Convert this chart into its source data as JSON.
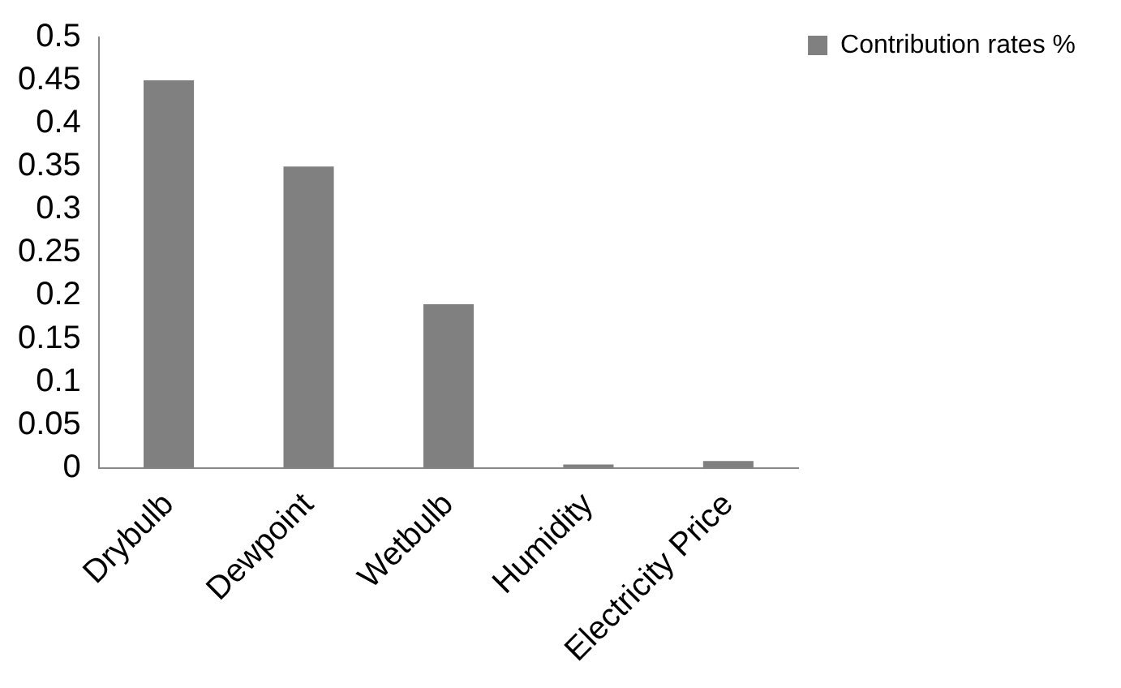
{
  "chart_data": {
    "type": "bar",
    "categories": [
      "Drybulb",
      "Dewpoint",
      "Wetbulb",
      "Humidity",
      "Electricity Price"
    ],
    "series": [
      {
        "name": "Contribution rates %",
        "color": "#808080",
        "values": [
          0.45,
          0.35,
          0.19,
          0.004,
          0.008
        ]
      }
    ],
    "ylim": [
      0,
      0.5
    ],
    "yticks": [
      0,
      0.05,
      0.1,
      0.15,
      0.2,
      0.25,
      0.3,
      0.35,
      0.4,
      0.45,
      0.5
    ],
    "grid": false,
    "legend": "top right"
  }
}
